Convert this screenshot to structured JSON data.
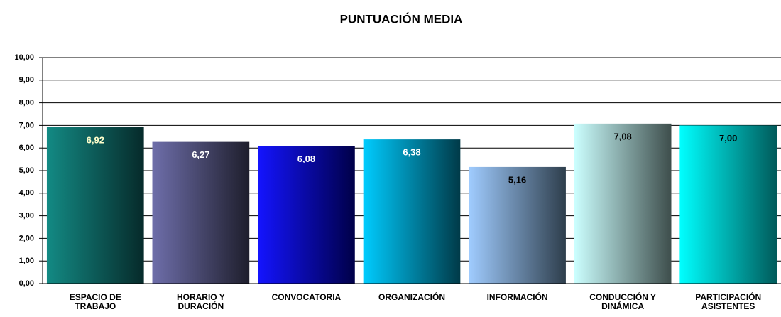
{
  "chart_data": {
    "type": "bar",
    "title": "PUNTUACIÓN MEDIA",
    "categories": [
      "ESPACIO DE TRABAJO",
      "HORARIO Y DURACIÓN",
      "CONVOCATORIA",
      "ORGANIZACIÓN",
      "INFORMACIÓN",
      "CONDUCCIÓN Y DINÁMICA",
      "PARTICIPACIÓN ASISTENTES"
    ],
    "values": [
      6.92,
      6.27,
      6.08,
      6.38,
      5.16,
      7.08,
      7.0
    ],
    "value_labels": [
      "6,92",
      "6,27",
      "6,08",
      "6,38",
      "5,16",
      "7,08",
      "7,00"
    ],
    "gradients": [
      [
        "#138a84",
        "#062a2a"
      ],
      [
        "#6e6eaa",
        "#1e1e2c"
      ],
      [
        "#1414ff",
        "#000048"
      ],
      [
        "#00ccff",
        "#003a48"
      ],
      [
        "#a0ccff",
        "#2e3e4c"
      ],
      [
        "#ccffff",
        "#3e4e4c"
      ],
      [
        "#00ffff",
        "#005a5a"
      ]
    ],
    "label_colors": [
      "#ffffcc",
      "#ffffff",
      "#ffffff",
      "#ffffff",
      "#000000",
      "#000000",
      "#000000"
    ],
    "ylim": [
      0,
      10
    ],
    "yticks": [
      {
        "value": 0,
        "label": "0,00"
      },
      {
        "value": 1,
        "label": "1,00"
      },
      {
        "value": 2,
        "label": "2,00"
      },
      {
        "value": 3,
        "label": "3,00"
      },
      {
        "value": 4,
        "label": "4,00"
      },
      {
        "value": 5,
        "label": "5,00"
      },
      {
        "value": 6,
        "label": "6,00"
      },
      {
        "value": 7,
        "label": "7,00"
      },
      {
        "value": 8,
        "label": "8,00"
      },
      {
        "value": 9,
        "label": "9,00"
      },
      {
        "value": 10,
        "label": "10,00"
      }
    ],
    "grid": true
  }
}
